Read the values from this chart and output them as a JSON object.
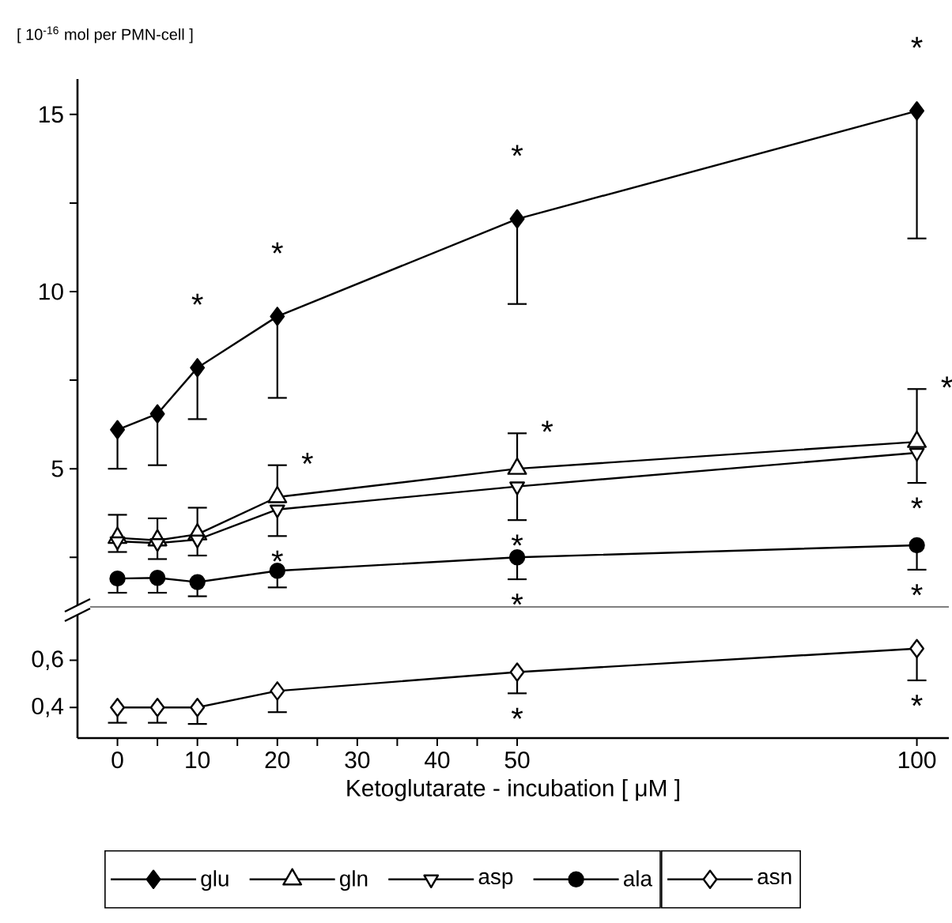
{
  "chart_data": [
    {
      "type": "line",
      "ylabel": "[ 10$^{-16}$ mol per PMN-cell ]",
      "x": [
        0,
        5,
        10,
        20,
        50,
        100
      ],
      "xlim": [
        -5,
        104
      ],
      "ylim": [
        1.1,
        16
      ],
      "yticks": [
        {
          "value": 2.5,
          "label": null
        },
        5,
        {
          "value": 7.5,
          "label": null
        },
        10,
        {
          "value": 12.5,
          "label": null
        },
        15
      ],
      "tick_labels": "y",
      "legend": "bottom",
      "series": [
        {
          "name": "glu",
          "color": "#000000",
          "marker": "diamond",
          "values": [
            6.1,
            6.55,
            7.85,
            9.3,
            12.05,
            15.1
          ],
          "errors": [
            [
              5.0,
              6.1
            ],
            [
              5.1,
              6.55
            ],
            [
              6.4,
              7.85
            ],
            [
              7.0,
              9.3
            ],
            [
              9.65,
              12.05
            ],
            [
              11.5,
              15.1
            ]
          ]
        },
        {
          "name": "gln",
          "color": "#000000",
          "marker": "triangle-open",
          "values": [
            3.05,
            2.98,
            3.15,
            4.2,
            5.0,
            5.76
          ],
          "errors": [
            [
              3.05,
              3.7
            ],
            [
              2.98,
              3.6
            ],
            [
              3.15,
              3.9
            ],
            [
              4.2,
              5.1
            ],
            [
              5.0,
              6.0
            ],
            [
              5.76,
              7.25
            ]
          ]
        },
        {
          "name": "asp",
          "color": "#000000",
          "marker": "triangle-down-open",
          "values": [
            2.95,
            2.9,
            3.0,
            3.85,
            4.5,
            5.45
          ],
          "errors": [
            [
              2.65,
              2.95
            ],
            [
              2.45,
              2.9
            ],
            [
              2.55,
              3.0
            ],
            [
              3.1,
              3.85
            ],
            [
              3.55,
              4.5
            ],
            [
              4.6,
              5.45
            ]
          ]
        },
        {
          "name": "ala",
          "color": "#000000",
          "marker": "circle",
          "values": [
            1.9,
            1.92,
            1.8,
            2.12,
            2.5,
            2.84
          ],
          "errors": [
            [
              1.5,
              1.9
            ],
            [
              1.5,
              1.92
            ],
            [
              1.4,
              1.8
            ],
            [
              1.65,
              2.12
            ],
            [
              1.88,
              2.5
            ],
            [
              2.15,
              2.84
            ]
          ]
        }
      ],
      "annotations": [
        {
          "text": "*",
          "x": 10,
          "y": 7.85
        },
        {
          "text": "*",
          "x": 20,
          "y": 9.3
        },
        {
          "text": "*",
          "x": 50,
          "y": 12.05
        },
        {
          "text": "*",
          "x": 100,
          "y": 15.1
        },
        {
          "text": "*",
          "x": 20,
          "y": 5.1
        },
        {
          "text": "*",
          "x": 50,
          "y": 6.0
        },
        {
          "text": "*",
          "x": 100,
          "y": 7.25
        },
        {
          "text": "*",
          "x": 20,
          "y": 3.1
        },
        {
          "text": "*",
          "x": 50,
          "y": 3.55
        },
        {
          "text": "*",
          "x": 100,
          "y": 4.6
        },
        {
          "text": "*",
          "x": 50,
          "y": 1.88
        },
        {
          "text": "*",
          "x": 100,
          "y": 2.15
        }
      ]
    },
    {
      "type": "line",
      "xlabel": "Ketoglutarate - incubation [ μM ]",
      "x": [
        0,
        5,
        10,
        20,
        50,
        100
      ],
      "xlim": [
        -5,
        104
      ],
      "xticks": [
        0,
        {
          "value": 5,
          "label": null
        },
        10,
        {
          "value": 15,
          "label": null
        },
        20,
        {
          "value": 25,
          "label": null
        },
        30,
        {
          "value": 35,
          "label": null
        },
        40,
        {
          "value": 45,
          "label": null
        },
        50,
        100
      ],
      "ylim": [
        0.27,
        0.8
      ],
      "yticks": [
        {
          "value": 0.4,
          "label": "0,4"
        },
        {
          "value": 0.6,
          "label": "0,6"
        }
      ],
      "legend": "bottom",
      "series": [
        {
          "name": "asn",
          "color": "#000000",
          "marker": "diamond-open",
          "values": [
            0.4,
            0.4,
            0.4,
            0.47,
            0.55,
            0.65
          ],
          "errors": [
            [
              0.335,
              0.4
            ],
            [
              0.335,
              0.4
            ],
            [
              0.33,
              0.4
            ],
            [
              0.38,
              0.47
            ],
            [
              0.46,
              0.55
            ],
            [
              0.515,
              0.65
            ]
          ]
        }
      ],
      "annotations": [
        {
          "text": "*",
          "x": 50,
          "y": 0.46
        },
        {
          "text": "*",
          "x": 100,
          "y": 0.515
        }
      ]
    }
  ]
}
